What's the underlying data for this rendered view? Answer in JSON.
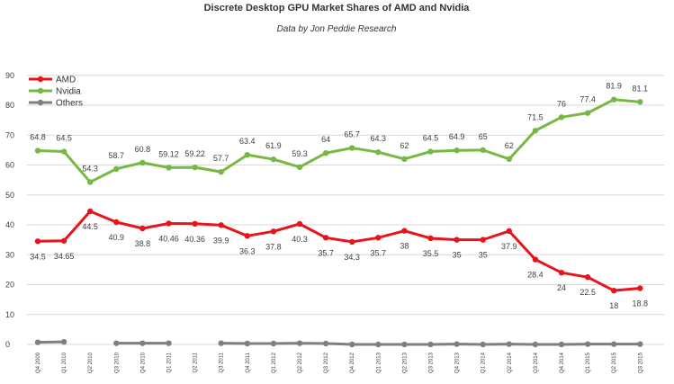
{
  "chart_data": {
    "type": "line",
    "title": "Discrete Desktop GPU Market Shares of AMD and Nvidia",
    "subtitle": "Data by Jon Peddie Research",
    "xlabel": "",
    "ylabel": "",
    "ylim": [
      0,
      90
    ],
    "yticks": [
      "0",
      "10",
      "20",
      "30",
      "40",
      "50",
      "60",
      "70",
      "80",
      "90"
    ],
    "grid": true,
    "legend_position": "top-left",
    "categories": [
      "Q4 2009",
      "Q1 2010",
      "Q2 2010",
      "Q3 2010",
      "Q4 2010",
      "Q1 2011",
      "Q2 2011",
      "Q3 2011",
      "Q4 2011",
      "Q1 2012",
      "Q2 2012",
      "Q3 2012",
      "Q4 2012",
      "Q1 2013",
      "Q2 2013",
      "Q3 2013",
      "Q4 2013",
      "Q1 2014",
      "Q2 2014",
      "Q3 2014",
      "Q4 2014",
      "Q1 2015",
      "Q2 2015",
      "Q3 2015"
    ],
    "series": [
      {
        "name": "AMD",
        "color": "#e8141b",
        "values": [
          34.5,
          34.65,
          44.5,
          40.9,
          38.8,
          40.46,
          40.36,
          39.9,
          36.3,
          37.8,
          40.3,
          35.7,
          34.3,
          35.7,
          38,
          35.5,
          35,
          35,
          37.9,
          28.4,
          24,
          22.5,
          18,
          18.8
        ],
        "labels": [
          "34.5",
          "34.65",
          "44.5",
          "40.9",
          "38.8",
          "40.46",
          "40.36",
          "39.9",
          "36.3",
          "37.8",
          "40.3",
          "35.7",
          "34.3",
          "35.7",
          "38",
          "35.5",
          "35",
          "35",
          "37.9",
          "28.4",
          "24",
          "22.5",
          "18",
          "18.8"
        ]
      },
      {
        "name": "Nvidia",
        "color": "#77b843",
        "values": [
          64.8,
          64.5,
          54.3,
          58.7,
          60.8,
          59.12,
          59.22,
          57.7,
          63.4,
          61.9,
          59.3,
          64,
          65.7,
          64.3,
          62,
          64.5,
          64.9,
          65,
          62,
          71.5,
          76,
          77.4,
          81.9,
          81.1
        ],
        "labels": [
          "64.8",
          "64.5",
          "54.3",
          "58.7",
          "60.8",
          "59.12",
          "59.22",
          "57.7",
          "63.4",
          "61.9",
          "59.3",
          "64",
          "65.7",
          "64.3",
          "62",
          "64.5",
          "64.9",
          "65",
          "62",
          "71.5",
          "76",
          "77.4",
          "81.9",
          "81.1"
        ]
      },
      {
        "name": "Others",
        "color": "#7f7f7f",
        "values": [
          0.7,
          0.85,
          null,
          0.4,
          0.4,
          0.4,
          null,
          0.4,
          0.3,
          0.3,
          0.4,
          0.3,
          0,
          0,
          0,
          0,
          0.1,
          0,
          0.1,
          0,
          0,
          0.1,
          0.1,
          0.1
        ]
      }
    ]
  }
}
